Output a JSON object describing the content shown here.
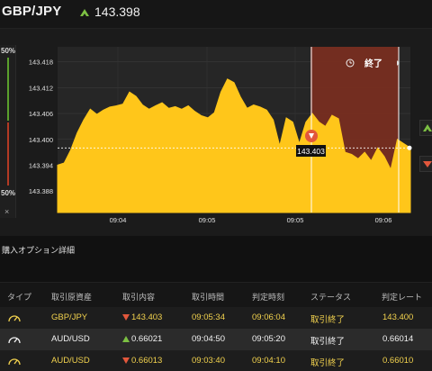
{
  "header": {
    "pair": "GBP/JPY",
    "trend_icon": "up-arrow-icon",
    "price": "143.398",
    "colors": {
      "up": "#7cc043",
      "down": "#e2573c",
      "accent": "#ffc61a"
    }
  },
  "chart": {
    "left_pct_top": "50%",
    "left_pct_bottom": "50%",
    "close_label": "×",
    "expiry_label": "終了",
    "expiry_icon": "history-icon",
    "marker_price": "143.403",
    "y_ticks": [
      "143.418",
      "143.412",
      "143.406",
      "143.400",
      "143.394",
      "143.388"
    ],
    "x_ticks": [
      "09:04",
      "09:05",
      "09:05",
      "09:06"
    ]
  },
  "chart_data": {
    "type": "area",
    "title": "",
    "xlabel": "",
    "ylabel": "",
    "y_ticks": [
      143.418,
      143.412,
      143.406,
      143.4,
      143.394,
      143.388
    ],
    "ylim": [
      143.383,
      143.4215
    ],
    "x_tick_labels": [
      "09:04",
      "09:05",
      "09:05",
      "09:06"
    ],
    "current_price": 143.398,
    "entry_price": 143.403,
    "series": [
      {
        "values": [
          143.394,
          143.3945,
          143.3975,
          143.4015,
          143.4045,
          143.407,
          143.4058,
          143.4068,
          143.4075,
          143.4078,
          143.4082,
          143.411,
          143.41,
          143.408,
          143.407,
          143.4078,
          143.4085,
          143.4072,
          143.4076,
          143.407,
          143.4078,
          143.4065,
          143.4055,
          143.405,
          143.4062,
          143.411,
          143.414,
          143.4132,
          143.4098,
          143.4072,
          143.408,
          143.4075,
          143.4068,
          143.4045,
          143.3985,
          143.405,
          143.404,
          143.399,
          143.404,
          143.406,
          143.404,
          143.403,
          143.4056,
          143.4048,
          143.397,
          143.3965,
          143.3955,
          143.397,
          143.395,
          143.398,
          143.396,
          143.393,
          143.4,
          143.399,
          143.398
        ]
      }
    ],
    "grid": true
  },
  "details": {
    "title": "購入オプション詳細",
    "columns": [
      "タイプ",
      "取引原資産",
      "取引内容",
      "取引時間",
      "判定時刻",
      "ステータス",
      "判定レート"
    ],
    "rows": [
      {
        "type_icon": "gauge-icon",
        "asset": "GBP/JPY",
        "direction": "down",
        "direction_icon": "down-arrow-icon",
        "content": "143.403",
        "trade_time": "09:05:34",
        "judge_time": "09:06:04",
        "status": "取引終了",
        "rate": "143.400"
      },
      {
        "type_icon": "gauge-icon",
        "asset": "AUD/USD",
        "direction": "up",
        "direction_icon": "up-arrow-icon",
        "content": "0.66021",
        "trade_time": "09:04:50",
        "judge_time": "09:05:20",
        "status": "取引終了",
        "rate": "0.66014"
      },
      {
        "type_icon": "gauge-icon",
        "asset": "AUD/USD",
        "direction": "down",
        "direction_icon": "down-arrow-icon",
        "content": "0.66013",
        "trade_time": "09:03:40",
        "judge_time": "09:04:10",
        "status": "取引終了",
        "rate": "0.66010"
      }
    ]
  }
}
